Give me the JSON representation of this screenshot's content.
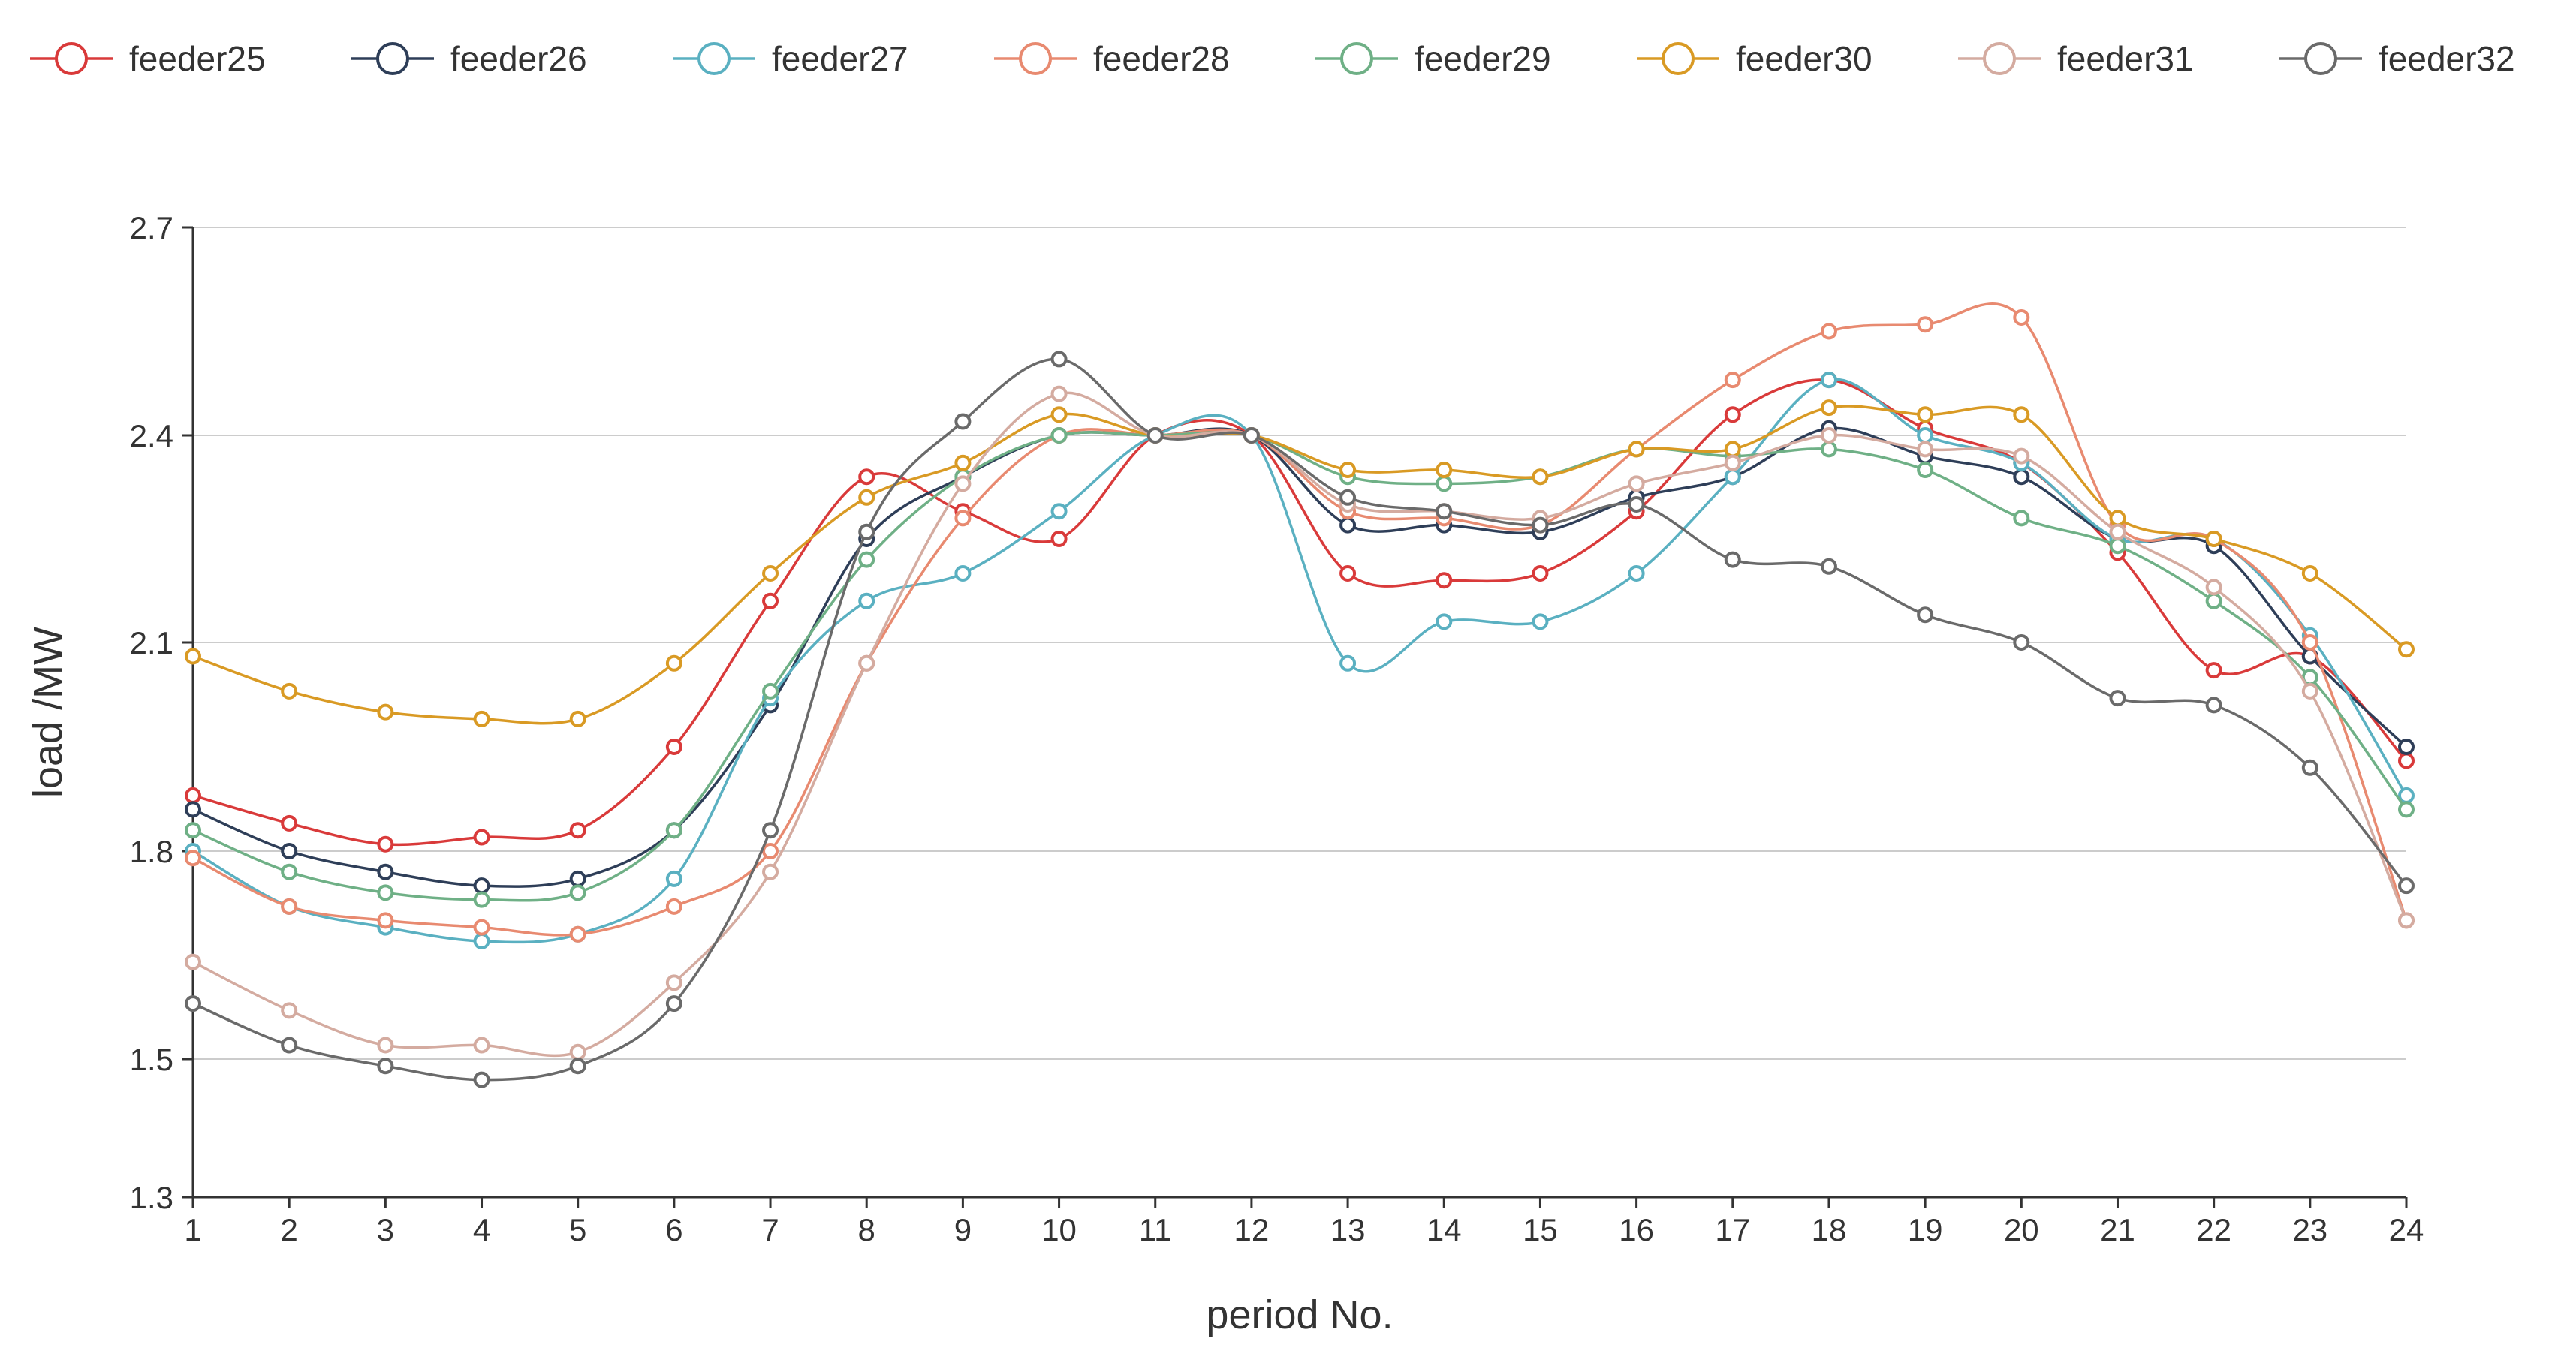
{
  "chart_data": {
    "type": "line",
    "xlabel": "period No.",
    "ylabel": "load /MW",
    "x": [
      1,
      2,
      3,
      4,
      5,
      6,
      7,
      8,
      9,
      10,
      11,
      12,
      13,
      14,
      15,
      16,
      17,
      18,
      19,
      20,
      21,
      22,
      23,
      24
    ],
    "xlim": [
      1,
      24
    ],
    "ylim": [
      1.3,
      2.7
    ],
    "yticks": [
      1.3,
      1.5,
      1.8,
      2.1,
      2.4,
      2.7
    ],
    "ytick_labels": [
      "1.3",
      "1.5",
      "1.8",
      "2.1",
      "2.4",
      "2.7"
    ],
    "grid": "horizontal",
    "legend_position": "top",
    "series": [
      {
        "name": "feeder25",
        "color": "#d93a3a",
        "values": [
          1.88,
          1.84,
          1.81,
          1.82,
          1.83,
          1.95,
          2.16,
          2.34,
          2.29,
          2.25,
          2.4,
          2.4,
          2.2,
          2.19,
          2.2,
          2.29,
          2.43,
          2.48,
          2.41,
          2.36,
          2.23,
          2.06,
          2.08,
          1.93
        ]
      },
      {
        "name": "feeder26",
        "color": "#2e3e58",
        "values": [
          1.86,
          1.8,
          1.77,
          1.75,
          1.76,
          1.83,
          2.01,
          2.25,
          2.34,
          2.4,
          2.4,
          2.4,
          2.27,
          2.27,
          2.26,
          2.31,
          2.34,
          2.41,
          2.37,
          2.34,
          2.25,
          2.24,
          2.08,
          1.95
        ]
      },
      {
        "name": "feeder27",
        "color": "#5ab0c1",
        "values": [
          1.8,
          1.72,
          1.69,
          1.67,
          1.68,
          1.76,
          2.02,
          2.16,
          2.2,
          2.29,
          2.4,
          2.4,
          2.07,
          2.13,
          2.13,
          2.2,
          2.34,
          2.48,
          2.4,
          2.36,
          2.25,
          2.25,
          2.11,
          1.88
        ]
      },
      {
        "name": "feeder28",
        "color": "#e88a70",
        "values": [
          1.79,
          1.72,
          1.7,
          1.69,
          1.68,
          1.72,
          1.8,
          2.07,
          2.28,
          2.4,
          2.4,
          2.4,
          2.29,
          2.28,
          2.27,
          2.38,
          2.48,
          2.55,
          2.56,
          2.57,
          2.27,
          2.25,
          2.1,
          1.7
        ]
      },
      {
        "name": "feeder29",
        "color": "#6fb086",
        "values": [
          1.83,
          1.77,
          1.74,
          1.73,
          1.74,
          1.83,
          2.03,
          2.22,
          2.34,
          2.4,
          2.4,
          2.4,
          2.34,
          2.33,
          2.34,
          2.38,
          2.37,
          2.38,
          2.35,
          2.28,
          2.24,
          2.16,
          2.05,
          1.86
        ]
      },
      {
        "name": "feeder30",
        "color": "#d99a24",
        "values": [
          2.08,
          2.03,
          2.0,
          1.99,
          1.99,
          2.07,
          2.2,
          2.31,
          2.36,
          2.43,
          2.4,
          2.4,
          2.35,
          2.35,
          2.34,
          2.38,
          2.38,
          2.44,
          2.43,
          2.43,
          2.28,
          2.25,
          2.2,
          2.09
        ]
      },
      {
        "name": "feeder31",
        "color": "#d4aba0",
        "values": [
          1.64,
          1.57,
          1.52,
          1.52,
          1.51,
          1.61,
          1.77,
          2.07,
          2.33,
          2.46,
          2.4,
          2.4,
          2.3,
          2.29,
          2.28,
          2.33,
          2.36,
          2.4,
          2.38,
          2.37,
          2.26,
          2.18,
          2.03,
          1.7
        ]
      },
      {
        "name": "feeder32",
        "color": "#6a6a6a",
        "values": [
          1.58,
          1.52,
          1.49,
          1.47,
          1.49,
          1.58,
          1.83,
          2.26,
          2.42,
          2.51,
          2.4,
          2.4,
          2.31,
          2.29,
          2.27,
          2.3,
          2.22,
          2.21,
          2.14,
          2.1,
          2.02,
          2.01,
          1.92,
          1.75
        ]
      }
    ]
  }
}
